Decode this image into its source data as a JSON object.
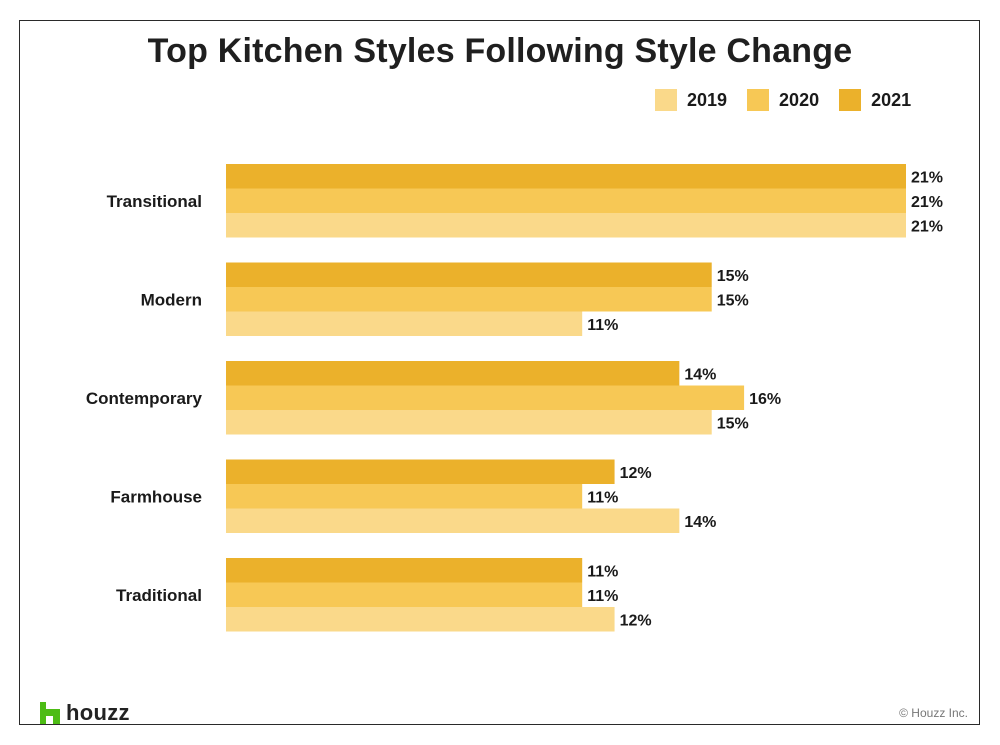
{
  "chart_data": {
    "type": "bar",
    "orientation": "horizontal",
    "title": "Top Kitchen Styles Following Style Change",
    "categories": [
      "Transitional",
      "Modern",
      "Contemporary",
      "Farmhouse",
      "Traditional"
    ],
    "series": [
      {
        "name": "2021",
        "color": "#ebb12b",
        "values": [
          21,
          15,
          14,
          12,
          11
        ]
      },
      {
        "name": "2020",
        "color": "#f7c855",
        "values": [
          21,
          15,
          16,
          11,
          11
        ]
      },
      {
        "name": "2019",
        "color": "#fad98a",
        "values": [
          21,
          11,
          15,
          14,
          12
        ]
      }
    ],
    "value_suffix": "%",
    "legend_order": [
      "2019",
      "2020",
      "2021"
    ],
    "legend_position": "top-right",
    "xlim": [
      0,
      21
    ],
    "grid": false
  },
  "brand": {
    "logo_text": "houzz",
    "logo_color": "#4dbc15",
    "copyright": "© Houzz Inc."
  }
}
